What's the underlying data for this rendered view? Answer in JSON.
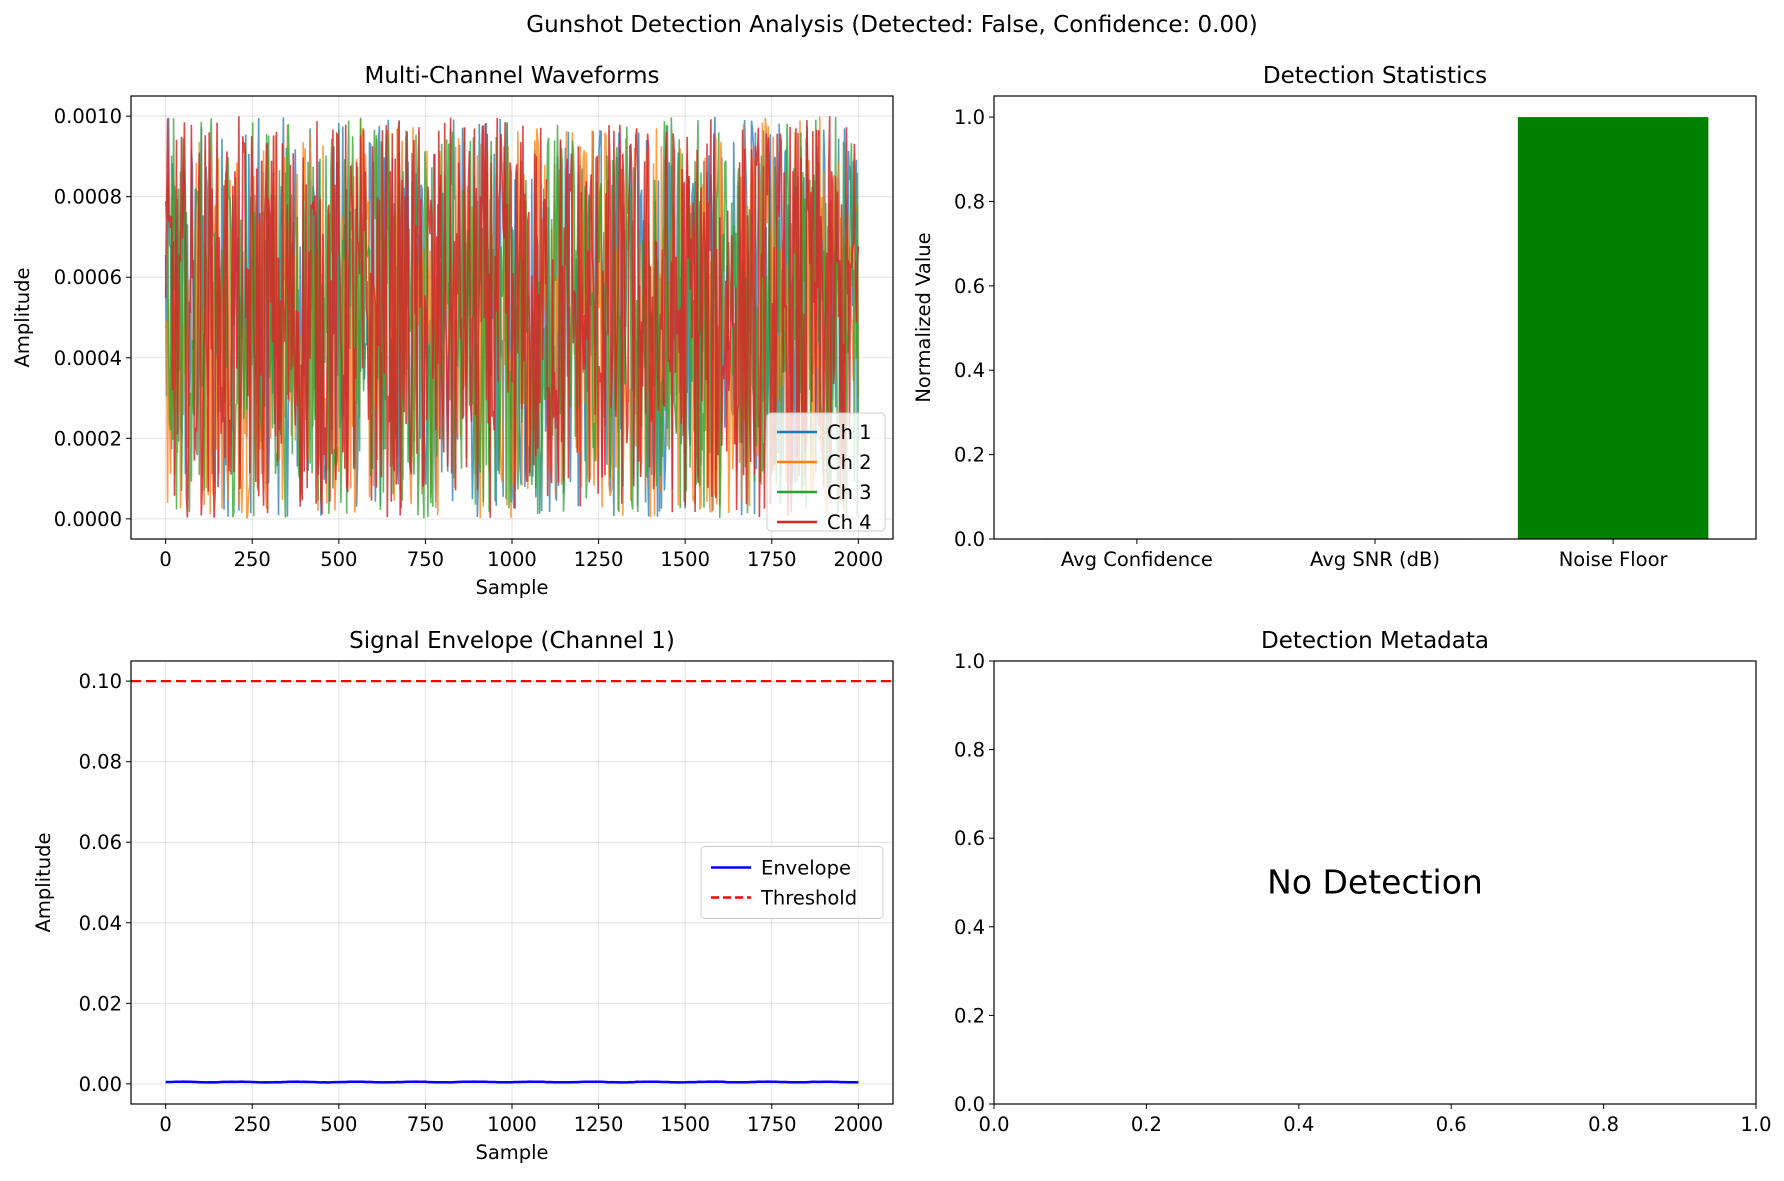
{
  "figure": {
    "suptitle": "Gunshot Detection Analysis (Detected: False, Confidence: 0.00)"
  },
  "chart_data": [
    {
      "type": "line",
      "title": "Multi-Channel Waveforms",
      "xlabel": "Sample",
      "ylabel": "Amplitude",
      "xlim": [
        -100,
        2100
      ],
      "ylim": [
        -5e-05,
        0.00105
      ],
      "xticks": [
        "0",
        "250",
        "500",
        "750",
        "1000",
        "1250",
        "1500",
        "1750",
        "2000"
      ],
      "yticks": [
        "0.0000",
        "0.0002",
        "0.0004",
        "0.0006",
        "0.0008",
        "0.0010"
      ],
      "grid": true,
      "legend_position": "lower-right",
      "x_range": [
        0,
        2000
      ],
      "amplitude_range": [
        0,
        0.001
      ],
      "series": [
        {
          "name": "Ch 1",
          "color": "#1f77b4"
        },
        {
          "name": "Ch 2",
          "color": "#ff7f0e"
        },
        {
          "name": "Ch 3",
          "color": "#2ca02c"
        },
        {
          "name": "Ch 4",
          "color": "#d62728"
        }
      ]
    },
    {
      "type": "bar",
      "title": "Detection Statistics",
      "xlabel": "",
      "ylabel": "Normalized Value",
      "categories": [
        "Avg Confidence",
        "Avg SNR (dB)",
        "Noise Floor"
      ],
      "values": [
        0.0,
        0.0,
        1.0
      ],
      "colors": [
        "#008000",
        "#008000",
        "#008000"
      ],
      "ylim": [
        0,
        1.05
      ],
      "yticks": [
        "0.0",
        "0.2",
        "0.4",
        "0.6",
        "0.8",
        "1.0"
      ],
      "grid": false
    },
    {
      "type": "line",
      "title": "Signal Envelope (Channel 1)",
      "xlabel": "Sample",
      "ylabel": "Amplitude",
      "xlim": [
        -100,
        2100
      ],
      "ylim": [
        -0.005,
        0.105
      ],
      "xticks": [
        "0",
        "250",
        "500",
        "750",
        "1000",
        "1250",
        "1500",
        "1750",
        "2000"
      ],
      "yticks": [
        "0.00",
        "0.02",
        "0.04",
        "0.06",
        "0.08",
        "0.10"
      ],
      "grid": true,
      "legend_position": "center-right",
      "series": [
        {
          "name": "Envelope",
          "color": "#0000ff",
          "style": "solid",
          "x_range": [
            0,
            2000
          ],
          "approx_value": 0.0005
        },
        {
          "name": "Threshold",
          "color": "#ff0000",
          "style": "dashed",
          "value": 0.1
        }
      ]
    },
    {
      "type": "text",
      "title": "Detection Metadata",
      "annotation": "No Detection",
      "xlim": [
        0,
        1
      ],
      "ylim": [
        0,
        1
      ],
      "xticks": [
        "0.0",
        "0.2",
        "0.4",
        "0.6",
        "0.8",
        "1.0"
      ],
      "yticks": [
        "0.0",
        "0.2",
        "0.4",
        "0.6",
        "0.8",
        "1.0"
      ],
      "grid": false
    }
  ]
}
